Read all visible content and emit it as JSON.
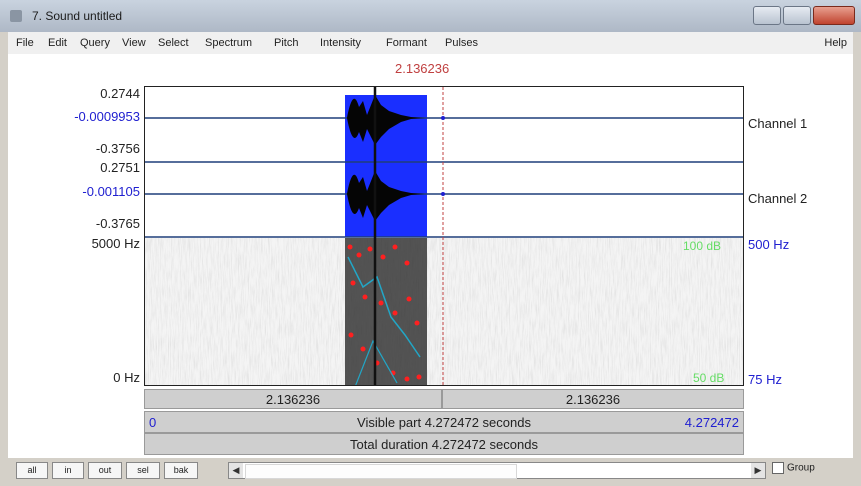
{
  "window": {
    "title": "7. Sound untitled"
  },
  "menu": [
    "File",
    "Edit",
    "Query",
    "View",
    "Select",
    "Spectrum",
    "Pitch",
    "Intensity",
    "Formant",
    "Pulses"
  ],
  "menu_help": "Help",
  "cursor_time": "2.136236",
  "waveform": {
    "ch1": {
      "max": "0.2744",
      "cursor": "-0.0009953",
      "min": "-0.3756",
      "name": "Channel 1"
    },
    "ch2": {
      "max": "0.2751",
      "cursor": "-0.001105",
      "min": "-0.3765",
      "name": "Channel 2"
    }
  },
  "spectrogram": {
    "fmax_left": "5000 Hz",
    "fmin_left": "0 Hz",
    "db_top": "100 dB",
    "hz_top": "500 Hz",
    "db_bottom": "50 dB",
    "hz_bottom": "75 Hz"
  },
  "bars": {
    "left_time": "2.136236",
    "right_time": "2.136236",
    "visible_start": "0",
    "visible_text": "Visible part 4.272472 seconds",
    "visible_end": "4.272472",
    "total_text": "Total duration 4.272472 seconds"
  },
  "bottom": {
    "buttons": [
      "all",
      "in",
      "out",
      "sel",
      "bak"
    ],
    "group_label": "Group"
  },
  "colors": {
    "selection": "#1a2fff",
    "cursor": "#c04040",
    "pitch": "#ff2020",
    "intensity": "#22a6c6"
  }
}
